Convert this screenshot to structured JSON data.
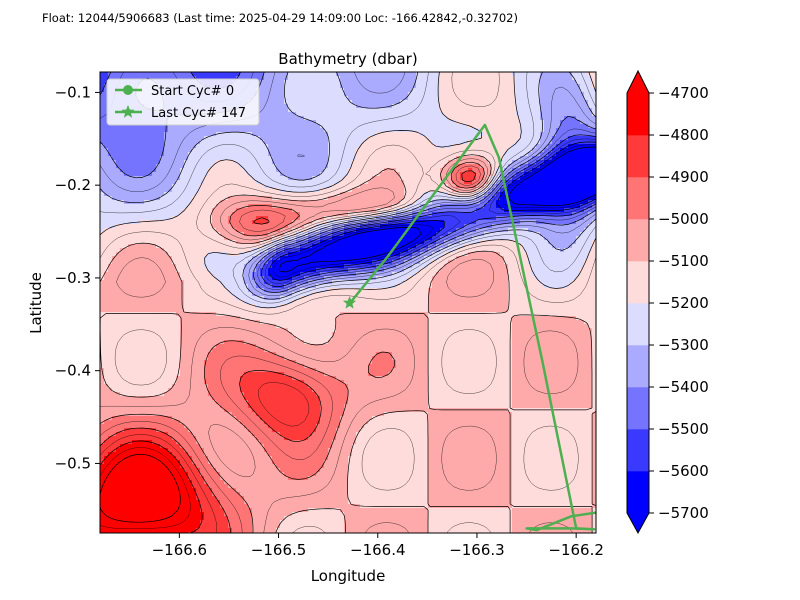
{
  "header_text": "Float: 12044/5906683 (Last time: 2025-04-29 14:09:00   Loc: -166.42842,-0.32702)",
  "chart_data": {
    "type": "contour",
    "title": "Bathymetry (dbar)",
    "xlabel": "Longitude",
    "ylabel": "Latitude",
    "xlim": [
      -166.68,
      -166.18
    ],
    "ylim": [
      -0.575,
      -0.078
    ],
    "xticks": [
      -166.6,
      -166.5,
      -166.4,
      -166.3,
      -166.2
    ],
    "yticks": [
      -0.1,
      -0.2,
      -0.3,
      -0.4,
      -0.5
    ],
    "grid": false,
    "legend_position": "top-left",
    "legend": [
      {
        "label": "Start Cyc# 0",
        "marker": "circle",
        "color": "#4caf50"
      },
      {
        "label": "Last Cyc# 147",
        "marker": "star",
        "color": "#4caf50"
      }
    ],
    "colorbar": {
      "levels": [
        -5700,
        -5600,
        -5500,
        -5400,
        -5300,
        -5200,
        -5100,
        -5000,
        -4900,
        -4800,
        -4700
      ],
      "colors": [
        "#0000ff",
        "#3a3aff",
        "#7474ff",
        "#aaaaff",
        "#dcdcff",
        "#ffdcdc",
        "#ffaaaa",
        "#ff7474",
        "#ff3a3a",
        "#ff0000"
      ],
      "extend": "both"
    },
    "float_track": {
      "color": "#4caf50",
      "points": [
        {
          "lon": -166.18,
          "lat": -0.553
        },
        {
          "lon": -166.205,
          "lat": -0.557
        },
        {
          "lon": -166.24,
          "lat": -0.572
        },
        {
          "lon": -166.25,
          "lat": -0.57
        },
        {
          "lon": -166.205,
          "lat": -0.57
        },
        {
          "lon": -166.182,
          "lat": -0.571
        },
        {
          "lon": -166.2,
          "lat": -0.57
        },
        {
          "lon": -166.234,
          "lat": -0.39
        },
        {
          "lon": -166.278,
          "lat": -0.17
        },
        {
          "lon": -166.292,
          "lat": -0.135
        },
        {
          "lon": -166.39,
          "lat": -0.277
        },
        {
          "lon": -166.428,
          "lat": -0.327
        }
      ],
      "last_position": {
        "lon": -166.42842,
        "lat": -0.32702
      }
    }
  }
}
